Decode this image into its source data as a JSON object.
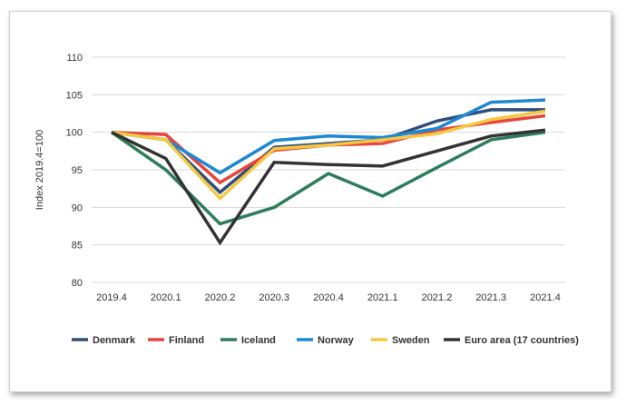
{
  "chart_data": {
    "type": "line",
    "ylabel": "Index 2019.4=100",
    "xlabel": "",
    "ylim": [
      80,
      110
    ],
    "yticks": [
      80,
      85,
      90,
      95,
      100,
      105,
      110
    ],
    "grid": true,
    "legend_position": "bottom",
    "x": [
      "2019.4",
      "2020.1",
      "2020.2",
      "2020.3",
      "2020.4",
      "2021.1",
      "2021.2",
      "2021.3",
      "2021.4"
    ],
    "series": [
      {
        "name": "Denmark",
        "color": "#2f4f7a",
        "values": [
          100,
          99.0,
          92.0,
          98.0,
          98.5,
          99.0,
          101.5,
          103.0,
          103.0
        ]
      },
      {
        "name": "Finland",
        "color": "#e8453c",
        "values": [
          100,
          99.7,
          93.3,
          97.6,
          98.3,
          98.5,
          100.3,
          101.3,
          102.2
        ]
      },
      {
        "name": "Iceland",
        "color": "#2e7d5b",
        "values": [
          100,
          95.0,
          87.8,
          90.0,
          94.5,
          91.5,
          95.3,
          99.0,
          100.0
        ]
      },
      {
        "name": "Norway",
        "color": "#1e88d2",
        "values": [
          100,
          99.0,
          94.6,
          98.9,
          99.5,
          99.3,
          100.5,
          104.0,
          104.3
        ]
      },
      {
        "name": "Sweden",
        "color": "#f5c842",
        "values": [
          100,
          99.0,
          91.2,
          97.8,
          98.3,
          99.0,
          99.8,
          101.7,
          102.8
        ]
      },
      {
        "name": "Euro area (17 countries)",
        "color": "#333333",
        "values": [
          100,
          96.5,
          85.3,
          96.0,
          95.7,
          95.5,
          97.5,
          99.5,
          100.3
        ]
      }
    ]
  }
}
